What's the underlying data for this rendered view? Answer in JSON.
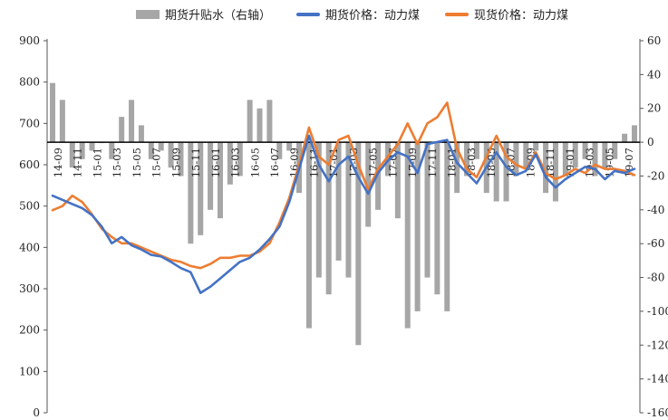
{
  "legend": {
    "basis": "期货升贴水（右轴）",
    "futures": "期货价格：动力煤",
    "spot": "现货价格：动力煤"
  },
  "colors": {
    "basis": "#a6a6a6",
    "futures": "#4472c4",
    "spot": "#ed7d31",
    "zero_line": "#000000"
  },
  "chart_data": {
    "type": "line",
    "title": "",
    "x_tick_labels": [
      "14-09",
      "14-11",
      "15-01",
      "15-03",
      "15-05",
      "15-07",
      "15-09",
      "15-11",
      "16-01",
      "16-03",
      "16-05",
      "16-07",
      "16-09",
      "16-11",
      "17-01",
      "17-03",
      "17-05",
      "17-07",
      "17-09",
      "17-11",
      "18-01",
      "18-03",
      "18-05",
      "18-07",
      "18-09",
      "18-11",
      "19-01",
      "19-03",
      "19-05",
      "19-07"
    ],
    "y_left": {
      "ylim": [
        0,
        900
      ],
      "ticks": [
        0,
        100,
        200,
        300,
        400,
        500,
        600,
        700,
        800,
        900
      ]
    },
    "y_right": {
      "ylim": [
        -160,
        60
      ],
      "ticks": [
        -160,
        -140,
        -120,
        -100,
        -80,
        -60,
        -40,
        -20,
        0,
        20,
        40,
        60
      ]
    },
    "grid": false,
    "legend_position": "top",
    "series": [
      {
        "name": "期货价格：动力煤",
        "axis": "left",
        "x": [
          "14-09",
          "14-10",
          "14-11",
          "14-12",
          "15-01",
          "15-02",
          "15-03",
          "15-04",
          "15-05",
          "15-06",
          "15-07",
          "15-08",
          "15-09",
          "15-10",
          "15-11",
          "15-12",
          "16-01",
          "16-02",
          "16-03",
          "16-04",
          "16-05",
          "16-06",
          "16-07",
          "16-08",
          "16-09",
          "16-10",
          "16-11",
          "16-12",
          "17-01",
          "17-02",
          "17-03",
          "17-04",
          "17-05",
          "17-06",
          "17-07",
          "17-08",
          "17-09",
          "17-10",
          "17-11",
          "17-12",
          "18-01",
          "18-02",
          "18-03",
          "18-04",
          "18-05",
          "18-06",
          "18-07",
          "18-08",
          "18-09",
          "18-10",
          "18-11",
          "18-12",
          "19-01",
          "19-02",
          "19-03",
          "19-04",
          "19-05",
          "19-06",
          "19-07",
          "19-08"
        ],
        "values": [
          525,
          515,
          505,
          495,
          478,
          450,
          410,
          425,
          405,
          395,
          382,
          378,
          365,
          350,
          340,
          290,
          305,
          325,
          345,
          365,
          375,
          395,
          420,
          450,
          510,
          590,
          670,
          600,
          560,
          600,
          620,
          570,
          530,
          580,
          610,
          630,
          620,
          580,
          650,
          655,
          660,
          605,
          580,
          555,
          595,
          630,
          595,
          575,
          585,
          625,
          570,
          545,
          565,
          580,
          595,
          590,
          565,
          585,
          580,
          590
        ]
      },
      {
        "name": "现货价格：动力煤",
        "axis": "left",
        "x": [
          "14-09",
          "14-10",
          "14-11",
          "14-12",
          "15-01",
          "15-02",
          "15-03",
          "15-04",
          "15-05",
          "15-06",
          "15-07",
          "15-08",
          "15-09",
          "15-10",
          "15-11",
          "15-12",
          "16-01",
          "16-02",
          "16-03",
          "16-04",
          "16-05",
          "16-06",
          "16-07",
          "16-08",
          "16-09",
          "16-10",
          "16-11",
          "16-12",
          "17-01",
          "17-02",
          "17-03",
          "17-04",
          "17-05",
          "17-06",
          "17-07",
          "17-08",
          "17-09",
          "17-10",
          "17-11",
          "17-12",
          "18-01",
          "18-02",
          "18-03",
          "18-04",
          "18-05",
          "18-06",
          "18-07",
          "18-08",
          "18-09",
          "18-10",
          "18-11",
          "18-12",
          "19-01",
          "19-02",
          "19-03",
          "19-04",
          "19-05",
          "19-06",
          "19-07",
          "19-08"
        ],
        "values": [
          490,
          500,
          525,
          510,
          480,
          445,
          425,
          410,
          410,
          400,
          390,
          380,
          370,
          365,
          355,
          350,
          360,
          375,
          375,
          380,
          380,
          390,
          410,
          460,
          520,
          600,
          690,
          620,
          600,
          660,
          670,
          600,
          540,
          590,
          620,
          650,
          700,
          650,
          700,
          715,
          750,
          640,
          590,
          570,
          620,
          670,
          620,
          600,
          590,
          630,
          580,
          565,
          575,
          590,
          580,
          600,
          590,
          590,
          585,
          575
        ]
      },
      {
        "name": "期货升贴水（右轴）",
        "axis": "right",
        "type": "bar",
        "x": [
          "14-09",
          "14-10",
          "14-11",
          "14-12",
          "15-01",
          "15-02",
          "15-03",
          "15-04",
          "15-05",
          "15-06",
          "15-07",
          "15-08",
          "15-09",
          "15-10",
          "15-11",
          "15-12",
          "16-01",
          "16-02",
          "16-03",
          "16-04",
          "16-05",
          "16-06",
          "16-07",
          "16-08",
          "16-09",
          "16-10",
          "16-11",
          "16-12",
          "17-01",
          "17-02",
          "17-03",
          "17-04",
          "17-05",
          "17-06",
          "17-07",
          "17-08",
          "17-09",
          "17-10",
          "17-11",
          "17-12",
          "18-01",
          "18-02",
          "18-03",
          "18-04",
          "18-05",
          "18-06",
          "18-07",
          "18-08",
          "18-09",
          "18-10",
          "18-11",
          "18-12",
          "19-01",
          "19-02",
          "19-03",
          "19-04",
          "19-05",
          "19-06",
          "19-07",
          "19-08"
        ],
        "values": [
          35,
          25,
          -15,
          -10,
          -5,
          0,
          -10,
          15,
          25,
          10,
          -10,
          -5,
          -15,
          -20,
          -60,
          -55,
          -40,
          -45,
          -25,
          -20,
          25,
          20,
          25,
          -10,
          -5,
          -30,
          -110,
          -80,
          -90,
          -70,
          -80,
          -120,
          -50,
          -40,
          -20,
          -45,
          -110,
          -100,
          -80,
          -90,
          -100,
          -30,
          -20,
          -10,
          -30,
          -35,
          -35,
          -20,
          -15,
          -5,
          -30,
          -35,
          -20,
          -15,
          -10,
          -20,
          -15,
          -10,
          5,
          10
        ]
      }
    ]
  }
}
